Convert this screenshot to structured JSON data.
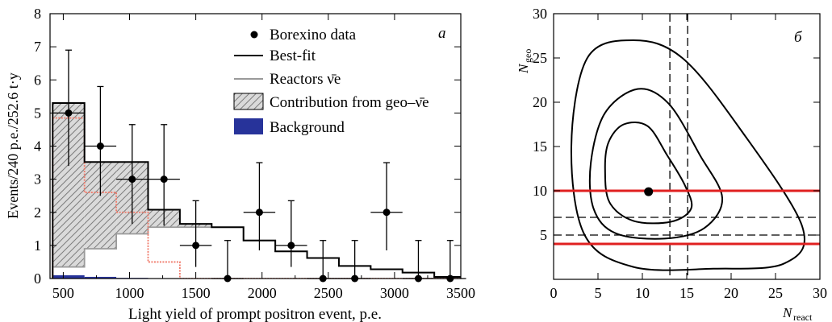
{
  "chart_data": [
    {
      "type": "bar",
      "panel_label": "a",
      "xlabel": "Light yield of prompt positron event, p.e.",
      "ylabel": "Events/240 p.e./252.6 t·y",
      "xlim": [
        400,
        3500
      ],
      "ylim": [
        0,
        8
      ],
      "xticks": [
        500,
        1000,
        1500,
        2000,
        2500,
        3000,
        3500
      ],
      "yticks": [
        0,
        1,
        2,
        3,
        4,
        5,
        6,
        7,
        8
      ],
      "bin_edges": [
        420,
        660,
        900,
        1140,
        1380,
        1620,
        1860,
        2100,
        2340,
        2580,
        2820,
        3060,
        3300,
        3540
      ],
      "legend": {
        "position": "top-right",
        "entries": [
          "Borexino data",
          "Best-fit",
          "Reactors ν̄e",
          "Contribution from geo–ν̄e",
          "Background"
        ]
      },
      "series": [
        {
          "name": "Borexino data",
          "kind": "points_with_errors",
          "x": [
            540,
            780,
            1020,
            1260,
            1500,
            1740,
            1980,
            2220,
            2460,
            2700,
            2940,
            3180,
            3420
          ],
          "y": [
            5,
            4,
            3,
            3,
            1,
            0,
            2,
            1,
            0,
            0,
            2,
            0,
            0
          ],
          "yerr_low": [
            1.6,
            1.5,
            1.35,
            1.4,
            0.65,
            0,
            1.15,
            0.65,
            0,
            0,
            1.15,
            0,
            0
          ],
          "yerr_high": [
            1.9,
            1.8,
            1.65,
            1.65,
            1.35,
            1.15,
            1.5,
            1.35,
            1.15,
            1.15,
            1.5,
            1.15,
            1.15
          ]
        },
        {
          "name": "Best-fit",
          "kind": "step",
          "values": [
            5.3,
            3.52,
            3.52,
            2.08,
            1.65,
            1.55,
            1.15,
            0.82,
            0.62,
            0.38,
            0.28,
            0.18,
            0.05
          ]
        },
        {
          "name": "Reactors ν̄e",
          "kind": "step",
          "values": [
            0.35,
            0.9,
            1.35,
            1.55,
            1.55,
            1.55,
            1.15,
            0.82,
            0.62,
            0.38,
            0.28,
            0.18,
            0.05
          ]
        },
        {
          "name": "Contribution from geo–ν̄e",
          "kind": "step",
          "values": [
            4.85,
            2.6,
            2.0,
            0.5,
            0,
            0,
            0,
            0,
            0,
            0,
            0,
            0,
            0
          ]
        },
        {
          "name": "Background",
          "kind": "step",
          "values": [
            0.1,
            0.05,
            0.02,
            0,
            0,
            0,
            0,
            0,
            0,
            0,
            0,
            0,
            0
          ]
        }
      ]
    },
    {
      "type": "contour",
      "panel_label": "б",
      "xlabel": "N_react",
      "ylabel": "N_geo",
      "xlim": [
        0,
        30
      ],
      "ylim": [
        0,
        30
      ],
      "xticks": [
        0,
        5,
        10,
        15,
        20,
        25,
        30
      ],
      "yticks": [
        5,
        10,
        15,
        20,
        25,
        30
      ],
      "best_fit_point": {
        "x": 10.7,
        "y": 9.9
      },
      "contours": [
        {
          "level": "inner",
          "points": [
            [
              5.8,
              12.5
            ],
            [
              6.2,
              15.5
            ],
            [
              7.9,
              17.5
            ],
            [
              10.6,
              17.3
            ],
            [
              12.8,
              14.0
            ],
            [
              14.8,
              10.6
            ],
            [
              15.5,
              8.0
            ],
            [
              13.2,
              6.5
            ],
            [
              9.0,
              6.6
            ],
            [
              6.3,
              8.7
            ]
          ]
        },
        {
          "level": "middle",
          "points": [
            [
              4.2,
              13.2
            ],
            [
              5.8,
              18.8
            ],
            [
              9.5,
              21.5
            ],
            [
              13.0,
              19.8
            ],
            [
              16.5,
              14.0
            ],
            [
              19.0,
              9.2
            ],
            [
              17.0,
              5.8
            ],
            [
              12.5,
              4.6
            ],
            [
              7.0,
              5.2
            ],
            [
              4.5,
              8.0
            ]
          ]
        },
        {
          "level": "outer",
          "points": [
            [
              2.0,
              15.0
            ],
            [
              3.8,
              25.0
            ],
            [
              9.0,
              27.0
            ],
            [
              14.5,
              25.0
            ],
            [
              21.0,
              17.0
            ],
            [
              28.0,
              6.0
            ],
            [
              26.0,
              1.8
            ],
            [
              18.0,
              1.2
            ],
            [
              9.0,
              1.4
            ],
            [
              3.5,
              5.0
            ]
          ]
        }
      ],
      "lines": [
        {
          "style": "dashed",
          "orientation": "vertical",
          "value": 13.1,
          "color": "#000000"
        },
        {
          "style": "dashed",
          "orientation": "vertical",
          "value": 15.1,
          "color": "#000000"
        },
        {
          "style": "dashed",
          "orientation": "horizontal",
          "value": 7.0,
          "color": "#000000"
        },
        {
          "style": "dashed",
          "orientation": "horizontal",
          "value": 5.0,
          "color": "#000000"
        },
        {
          "style": "solid",
          "orientation": "horizontal",
          "value": 10.0,
          "color": "#e02020"
        },
        {
          "style": "solid",
          "orientation": "horizontal",
          "value": 4.0,
          "color": "#e02020"
        }
      ]
    }
  ],
  "colors": {
    "background_fill": "#27339a",
    "geo_fill": "#dadada",
    "hatch": "#7a7a7a",
    "reactor_line": "#9a9a9a",
    "geo_outline": "#f07a6a",
    "red_line": "#e02020"
  }
}
